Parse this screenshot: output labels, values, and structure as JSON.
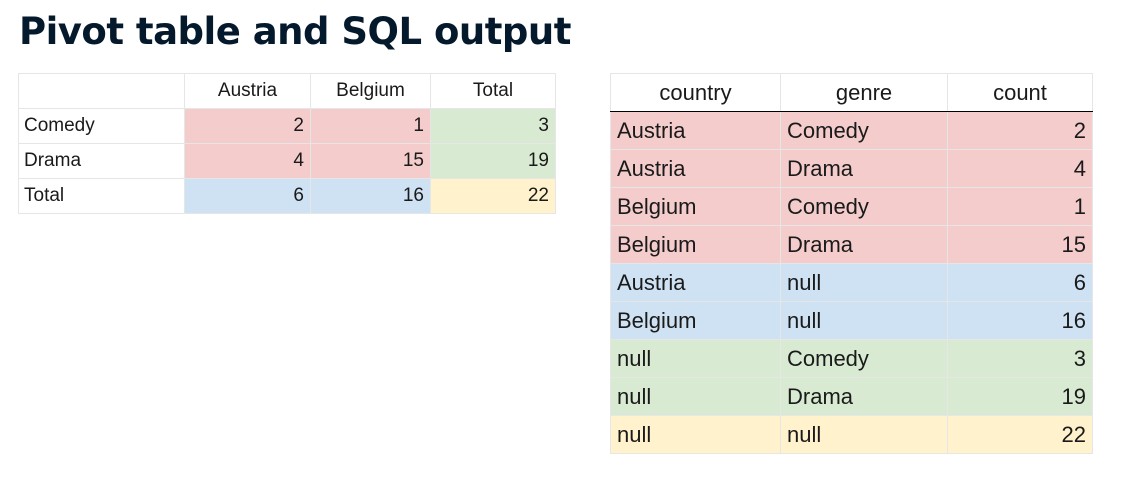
{
  "title": "Pivot table and SQL output",
  "colors": {
    "red": "#f4cccc",
    "green": "#d9ead3",
    "blue": "#cfe2f3",
    "yellow": "#fff2cc"
  },
  "pivot": {
    "headers": [
      "",
      "Austria",
      "Belgium",
      "Total"
    ],
    "rows": [
      {
        "label": "Comedy",
        "austria": "2",
        "belgium": "1",
        "total": "3"
      },
      {
        "label": "Drama",
        "austria": "4",
        "belgium": "15",
        "total": "19"
      },
      {
        "label": "Total",
        "austria": "6",
        "belgium": "16",
        "total": "22"
      }
    ]
  },
  "sql": {
    "headers": [
      "country",
      "genre",
      "count"
    ],
    "rows": [
      {
        "country": "Austria",
        "genre": "Comedy",
        "count": "2",
        "color": "red"
      },
      {
        "country": "Austria",
        "genre": "Drama",
        "count": "4",
        "color": "red"
      },
      {
        "country": "Belgium",
        "genre": "Comedy",
        "count": "1",
        "color": "red"
      },
      {
        "country": "Belgium",
        "genre": "Drama",
        "count": "15",
        "color": "red"
      },
      {
        "country": "Austria",
        "genre": "null",
        "count": "6",
        "color": "blue"
      },
      {
        "country": "Belgium",
        "genre": "null",
        "count": "16",
        "color": "blue"
      },
      {
        "country": "null",
        "genre": "Comedy",
        "count": "3",
        "color": "green"
      },
      {
        "country": "null",
        "genre": "Drama",
        "count": "19",
        "color": "green"
      },
      {
        "country": "null",
        "genre": "null",
        "count": "22",
        "color": "yellow"
      }
    ]
  }
}
